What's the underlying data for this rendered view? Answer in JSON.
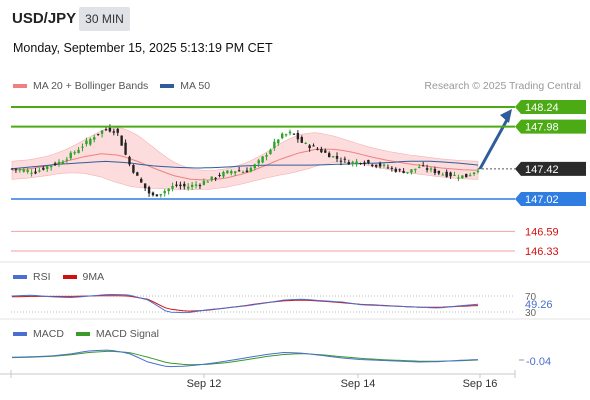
{
  "header": {
    "pair": "USD/JPY",
    "timeframe": "30 MIN",
    "datetime": "Monday, September 15, 2025 5:13:19 PM CET"
  },
  "legend": {
    "main": [
      {
        "label": "MA 20 + Bollinger Bands",
        "color": "#f08080"
      },
      {
        "label": "MA 50",
        "color": "#2f5d9a"
      }
    ],
    "rsi": [
      {
        "label": "RSI",
        "color": "#4a6fd1"
      },
      {
        "label": "9MA",
        "color": "#d01010"
      }
    ],
    "macd": [
      {
        "label": "MACD",
        "color": "#4a6fd1"
      },
      {
        "label": "MACD Signal",
        "color": "#3a9a2a"
      }
    ]
  },
  "credit": "Research © 2025 Trading Central",
  "levels": [
    {
      "value": "148.24",
      "kind": "resistance",
      "color": "#4caa15"
    },
    {
      "value": "147.98",
      "kind": "resistance",
      "color": "#4caa15"
    },
    {
      "value": "147.42",
      "kind": "current",
      "color": "#2b2b2b"
    },
    {
      "value": "147.02",
      "kind": "support",
      "color": "#2f7de0"
    },
    {
      "value": "146.59",
      "kind": "support-minor",
      "color": "#d01010"
    },
    {
      "value": "146.33",
      "kind": "support-minor",
      "color": "#d01010"
    }
  ],
  "rsi_panel": {
    "ticks": [
      "70",
      "30"
    ],
    "value": "49.26"
  },
  "macd_panel": {
    "value": "-0.04"
  },
  "x_axis": {
    "labels": [
      "Sep 12",
      "Sep 14",
      "Sep 16"
    ]
  },
  "chart_data": [
    {
      "type": "line",
      "title": "USD/JPY",
      "subtitle": "30 MIN",
      "series": [
        {
          "name": "Price",
          "values": [
            147.42,
            147.4,
            147.38,
            147.45,
            147.5,
            147.6,
            147.72,
            147.85,
            147.95,
            147.92,
            147.5,
            147.25,
            147.05,
            147.12,
            147.2,
            147.18,
            147.22,
            147.28,
            147.35,
            147.4,
            147.38,
            147.48,
            147.65,
            147.85,
            147.9,
            147.75,
            147.7,
            147.62,
            147.55,
            147.5,
            147.52,
            147.48,
            147.45,
            147.4,
            147.38,
            147.45,
            147.4,
            147.35,
            147.33,
            147.32,
            147.42
          ]
        },
        {
          "name": "MA 20 + Bollinger Bands",
          "values": [
            147.4,
            147.42,
            147.46,
            147.52,
            147.58,
            147.62,
            147.6,
            147.52,
            147.42,
            147.33,
            147.28,
            147.27,
            147.3,
            147.36,
            147.45,
            147.55,
            147.63,
            147.68,
            147.68,
            147.64,
            147.58,
            147.53,
            147.49,
            147.46,
            147.43,
            147.41,
            147.4
          ]
        },
        {
          "name": "MA 50",
          "values": [
            147.42,
            147.45,
            147.48,
            147.5,
            147.52,
            147.5,
            147.46,
            147.44,
            147.43,
            147.44,
            147.46,
            147.47,
            147.47,
            147.47,
            147.48,
            147.49,
            147.5,
            147.52,
            147.52,
            147.5,
            147.47
          ]
        }
      ],
      "forecast_target": 148.24,
      "ylim": [
        146.2,
        148.4
      ],
      "x_ticks": [
        "Sep 12",
        "Sep 14",
        "Sep 16"
      ]
    },
    {
      "type": "line",
      "series": [
        {
          "name": "RSI",
          "values": [
            70,
            72,
            68,
            66,
            70,
            74,
            73,
            60,
            30,
            28,
            35,
            40,
            45,
            52,
            60,
            62,
            58,
            55,
            48,
            46,
            44,
            42,
            40,
            45,
            49.26
          ]
        },
        {
          "name": "9MA",
          "values": [
            68,
            69,
            69,
            69,
            70,
            71,
            70,
            62,
            38,
            32,
            34,
            40,
            46,
            53,
            58,
            60,
            57,
            53,
            49,
            47,
            44,
            42,
            42,
            44,
            46
          ]
        }
      ],
      "ylim": [
        20,
        80
      ],
      "y_ticks": [
        70,
        30
      ]
    },
    {
      "type": "line",
      "series": [
        {
          "name": "MACD",
          "values": [
            0.02,
            0.03,
            0.05,
            0.1,
            0.18,
            0.2,
            0.12,
            -0.1,
            -0.22,
            -0.2,
            -0.15,
            -0.08,
            0.0,
            0.08,
            0.14,
            0.12,
            0.06,
            0.0,
            -0.04,
            -0.06,
            -0.08,
            -0.1,
            -0.09,
            -0.06,
            -0.04
          ]
        },
        {
          "name": "MACD Signal",
          "values": [
            0.01,
            0.02,
            0.04,
            0.08,
            0.14,
            0.17,
            0.14,
            0.02,
            -0.12,
            -0.17,
            -0.16,
            -0.12,
            -0.05,
            0.03,
            0.09,
            0.11,
            0.08,
            0.03,
            -0.01,
            -0.04,
            -0.06,
            -0.08,
            -0.08,
            -0.07,
            -0.05
          ]
        }
      ],
      "ylim": [
        -0.3,
        0.3
      ]
    }
  ]
}
